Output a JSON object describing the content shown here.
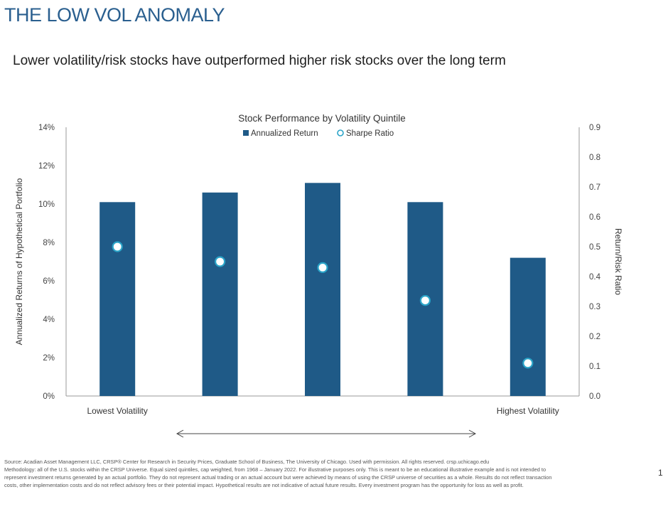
{
  "slide": {
    "title": "THE LOW VOL ANOMALY",
    "subtitle": "Lower volatility/risk stocks have outperformed higher risk stocks over the long term",
    "page_number": "1"
  },
  "footnote": {
    "lines": [
      "Source: Acadian Asset Management LLC, CRSP® Center for Research in Security Prices, Graduate School of Business, The University of Chicago. Used with permission. All rights reserved. crsp.uchicago.edu",
      "Methodology: all of the U.S. stocks within the CRSP Universe. Equal sized quintiles, cap weighted, from 1968 – January 2022. For illustrative purposes only. This is meant to be an educational illustrative example and is not intended to",
      "represent investment returns generated by an actual portfolio. They do not represent actual trading or an actual account but were achieved by means of using the CRSP universe of securities as a whole. Results do not reflect transaction",
      "costs, other implementation costs and do not reflect advisory fees or their potential impact. Hypothetical results are not indicative of actual future results. Every investment program has the opportunity for loss as well as profit."
    ]
  },
  "chart_data": {
    "type": "bar",
    "title": "Stock Performance by Volatility Quintile",
    "categories": [
      "Lowest Volatility",
      "",
      "",
      "",
      "Highest Volatility"
    ],
    "series": [
      {
        "name": "Annualized Return",
        "type": "bar",
        "axis": "left",
        "values": [
          10.1,
          10.6,
          11.1,
          10.1,
          7.2
        ]
      },
      {
        "name": "Sharpe Ratio",
        "type": "scatter",
        "axis": "right",
        "values": [
          0.5,
          0.45,
          0.43,
          0.32,
          0.11
        ]
      }
    ],
    "ylabel": "Annualized Returns of Hypothetical Portfolio",
    "y2label": "Return/Risk Ratio",
    "ylim": [
      0,
      14
    ],
    "y2lim": [
      0,
      0.9
    ],
    "yticks": [
      "0%",
      "2%",
      "4%",
      "6%",
      "8%",
      "10%",
      "12%",
      "14%"
    ],
    "y2ticks": [
      "0.0",
      "0.1",
      "0.2",
      "0.3",
      "0.4",
      "0.5",
      "0.6",
      "0.7",
      "0.8",
      "0.9"
    ],
    "grid": false,
    "legend": "top-center",
    "colors": {
      "bar": "#1f5a87",
      "marker_fill": "#ffffff",
      "marker_stroke": "#2aa4c8",
      "axis": "#9a9a9a"
    }
  }
}
